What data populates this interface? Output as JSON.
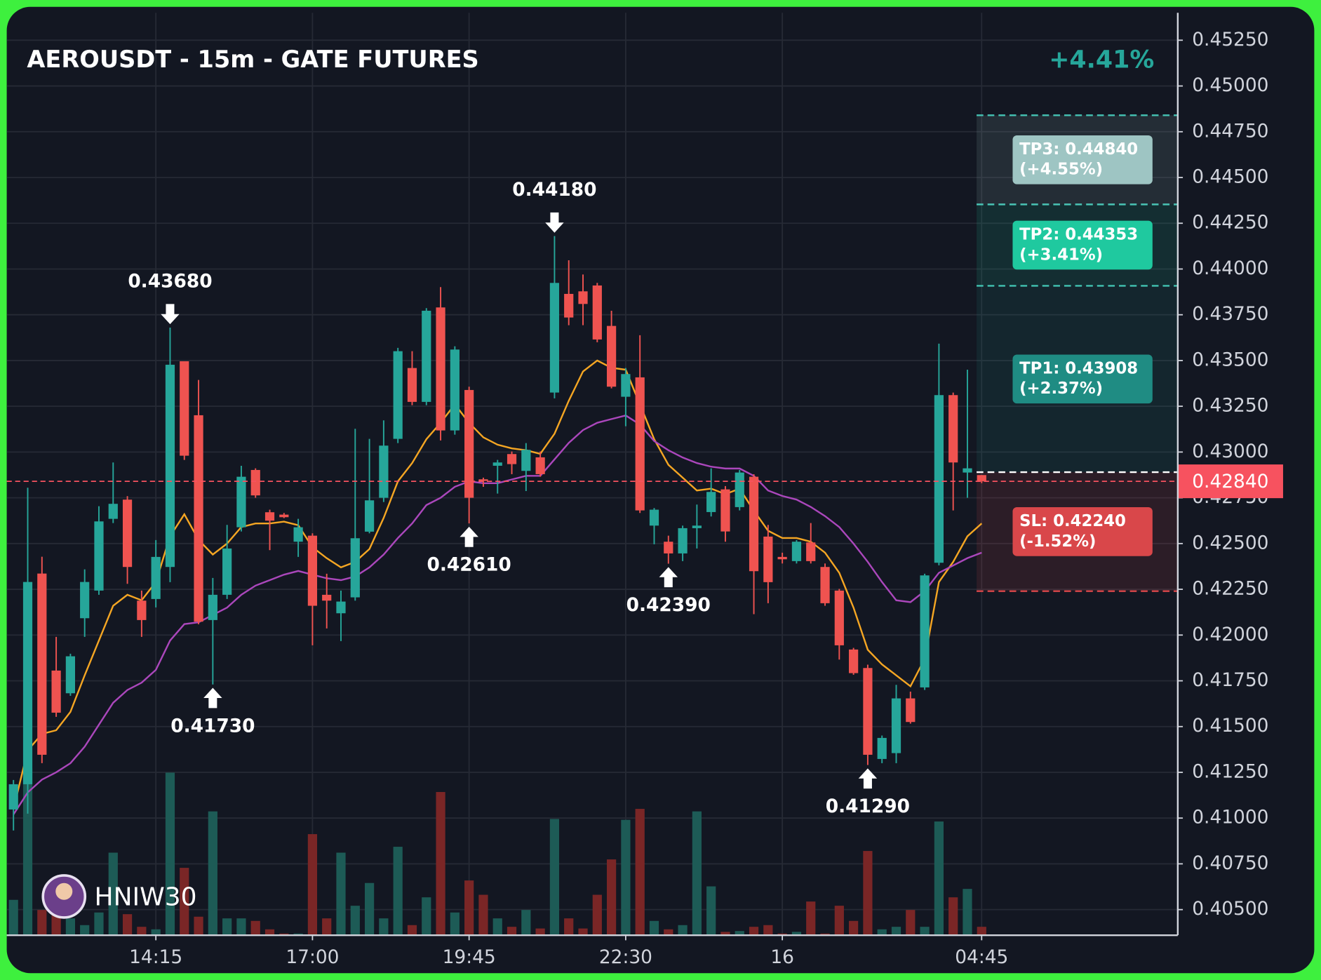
{
  "chart_data": {
    "type": "candlestick",
    "title": "AEROUSDT - 15m - GATE FUTURES",
    "change_label": "+4.41%",
    "watermark": "HNIW30",
    "categories": [
      null,
      null,
      null,
      null,
      null,
      null,
      null,
      null,
      null,
      null,
      "14:15",
      null,
      null,
      null,
      null,
      null,
      null,
      null,
      null,
      null,
      null,
      "17:00",
      null,
      null,
      null,
      null,
      null,
      null,
      null,
      null,
      null,
      null,
      "19:45",
      null,
      null,
      null,
      null,
      null,
      null,
      null,
      null,
      null,
      null,
      "22:30",
      null,
      null,
      null,
      null,
      null,
      null,
      null,
      null,
      null,
      null,
      "16",
      null,
      null,
      null,
      null,
      null,
      null,
      null,
      null,
      null,
      null,
      null,
      null,
      null,
      "04:45"
    ],
    "open": [
      0.41047,
      0.41185,
      0.42336,
      0.41806,
      0.41682,
      0.42092,
      0.42243,
      0.42635,
      0.4274,
      0.42188,
      0.42197,
      0.42372,
      0.43496,
      0.43201,
      0.42082,
      0.4222,
      0.42589,
      0.42902,
      0.42671,
      0.42658,
      0.4251,
      0.42543,
      0.4222,
      0.42119,
      0.42206,
      0.42565,
      0.4275,
      0.43072,
      0.43459,
      0.43274,
      0.4379,
      0.43118,
      0.43339,
      0.42851,
      0.42925,
      0.42989,
      0.42897,
      0.42971,
      0.43325,
      0.43864,
      0.43878,
      0.4391,
      0.43689,
      0.43302,
      0.43408,
      0.42598,
      0.4251,
      0.42446,
      0.42584,
      0.42672,
      0.42796,
      0.42699,
      0.42865,
      0.42538,
      0.42427,
      0.42404,
      0.42506,
      0.42372,
      0.42243,
      0.41921,
      0.4182,
      0.41323,
      0.41355,
      0.41654,
      0.41714,
      0.42395,
      0.43311,
      0.42888,
      0.42874
    ],
    "high": [
      0.41208,
      0.42805,
      0.42428,
      0.4199,
      0.41898,
      0.42359,
      0.42704,
      0.42943,
      0.42759,
      0.42243,
      0.42519,
      0.4368,
      0.43496,
      0.43394,
      0.42312,
      0.42602,
      0.42925,
      0.42911,
      0.42685,
      0.42667,
      0.42635,
      0.42556,
      0.42335,
      0.42243,
      0.43127,
      0.43072,
      0.43173,
      0.43569,
      0.43551,
      0.43786,
      0.43901,
      0.43578,
      0.43357,
      0.4286,
      0.42957,
      0.43003,
      0.43049,
      0.43003,
      0.4418,
      0.44048,
      0.4397,
      0.43924,
      0.43772,
      0.43459,
      0.43638,
      0.42694,
      0.42543,
      0.42598,
      0.42713,
      0.42911,
      0.42814,
      0.42902,
      0.42879,
      0.42602,
      0.4245,
      0.42519,
      0.42612,
      0.42391,
      0.42252,
      0.4193,
      0.41838,
      0.41451,
      0.41728,
      0.41691,
      0.42335,
      0.43592,
      0.43325,
      0.4345,
      0.42874
    ],
    "low": [
      0.40932,
      0.41024,
      0.413,
      0.41553,
      0.41668,
      0.4199,
      0.4222,
      0.42612,
      0.4228,
      0.4199,
      0.42151,
      0.42289,
      0.42957,
      0.42059,
      0.4173,
      0.42197,
      0.42566,
      0.4275,
      0.42464,
      0.42639,
      0.42427,
      0.41944,
      0.42036,
      0.41967,
      0.42188,
      0.42556,
      0.42727,
      0.43049,
      0.43256,
      0.43256,
      0.43063,
      0.43095,
      0.4261,
      0.4281,
      0.42773,
      0.42879,
      0.42787,
      0.42865,
      0.43293,
      0.43693,
      0.43693,
      0.436,
      0.43348,
      0.43141,
      0.42667,
      0.42496,
      0.4239,
      0.42404,
      0.42473,
      0.42648,
      0.4251,
      0.42681,
      0.42114,
      0.42174,
      0.42391,
      0.42391,
      0.42391,
      0.4216,
      0.41866,
      0.41783,
      0.4129,
      0.413,
      0.413,
      0.41516,
      0.417,
      0.42381,
      0.42681,
      0.4275,
      0.4283
    ],
    "close": [
      0.41185,
      0.4229,
      0.41346,
      0.41576,
      0.41884,
      0.4229,
      0.42621,
      0.42717,
      0.42372,
      0.42082,
      0.42427,
      0.43477,
      0.4298,
      0.42073,
      0.4222,
      0.42473,
      0.42865,
      0.42763,
      0.42625,
      0.42644,
      0.42589,
      0.4216,
      0.42188,
      0.42183,
      0.42529,
      0.42736,
      0.43035,
      0.43551,
      0.43274,
      0.43772,
      0.43118,
      0.4356,
      0.4275,
      0.42842,
      0.42943,
      0.42934,
      0.43012,
      0.42879,
      0.43924,
      0.43735,
      0.43809,
      0.43615,
      0.43357,
      0.43426,
      0.42681,
      0.42685,
      0.42446,
      0.42584,
      0.42598,
      0.42782,
      0.42566,
      0.42888,
      0.42349,
      0.42289,
      0.42414,
      0.4251,
      0.42404,
      0.42174,
      0.41944,
      0.41792,
      0.41346,
      0.41438,
      0.41654,
      0.41525,
      0.42326,
      0.43311,
      0.42943,
      0.42911,
      0.4284
    ],
    "volume": [
      42,
      198,
      30,
      35,
      20,
      12,
      27,
      98,
      25,
      10,
      7,
      193,
      80,
      22,
      147,
      20,
      20,
      17,
      7,
      2,
      2,
      120,
      20,
      98,
      35,
      62,
      20,
      105,
      12,
      45,
      170,
      27,
      65,
      48,
      20,
      10,
      30,
      8,
      138,
      20,
      8,
      48,
      90,
      137,
      150,
      17,
      7,
      12,
      147,
      58,
      4,
      5,
      10,
      12,
      2,
      4,
      40,
      2,
      35,
      17,
      100,
      7,
      10,
      30,
      10,
      135,
      45,
      55,
      10
    ],
    "volume_lim": [
      0,
      250
    ],
    "up_color": "#26a69a",
    "down_color": "#ef5350",
    "volume_up_color": "#1d5b56",
    "volume_down_color": "#7a2626",
    "lines": [
      {
        "color": "#f5a623",
        "values": [
          0.4105,
          0.4137,
          0.4146,
          0.4148,
          0.4158,
          0.4178,
          0.4197,
          0.4216,
          0.4222,
          0.4219,
          0.4229,
          0.4254,
          0.4266,
          0.4252,
          0.4244,
          0.425,
          0.4259,
          0.4261,
          0.4261,
          0.4262,
          0.426,
          0.4248,
          0.4242,
          0.4237,
          0.424,
          0.4247,
          0.4264,
          0.4284,
          0.4294,
          0.4307,
          0.4316,
          0.4326,
          0.4316,
          0.4308,
          0.4304,
          0.4302,
          0.4301,
          0.4299,
          0.431,
          0.4328,
          0.4344,
          0.435,
          0.4346,
          0.4345,
          0.4326,
          0.4307,
          0.4293,
          0.4286,
          0.4279,
          0.428,
          0.4277,
          0.428,
          0.4268,
          0.4257,
          0.4253,
          0.4253,
          0.4251,
          0.4245,
          0.4234,
          0.4215,
          0.4192,
          0.4184,
          0.4178,
          0.4172,
          0.4187,
          0.4229,
          0.424,
          0.4254,
          0.4261
        ]
      },
      {
        "color": "#ab47bc",
        "values": [
          0.4102,
          0.4114,
          0.4121,
          0.4125,
          0.413,
          0.4139,
          0.4151,
          0.4163,
          0.417,
          0.4174,
          0.4181,
          0.4197,
          0.4206,
          0.4207,
          0.4211,
          0.4215,
          0.4222,
          0.4227,
          0.423,
          0.4233,
          0.4235,
          0.4233,
          0.4231,
          0.423,
          0.4232,
          0.4237,
          0.4244,
          0.4253,
          0.4261,
          0.4271,
          0.4275,
          0.4281,
          0.4284,
          0.4283,
          0.4283,
          0.4285,
          0.4287,
          0.4287,
          0.4296,
          0.4305,
          0.4312,
          0.4316,
          0.4318,
          0.432,
          0.4315,
          0.4306,
          0.4301,
          0.4297,
          0.4294,
          0.4292,
          0.4291,
          0.4291,
          0.4287,
          0.4279,
          0.4276,
          0.4274,
          0.427,
          0.4265,
          0.4259,
          0.425,
          0.424,
          0.4229,
          0.4219,
          0.4218,
          0.4224,
          0.4234,
          0.4238,
          0.4242,
          0.4245
        ]
      }
    ],
    "annotations": [
      {
        "value": 0.4368,
        "label": "0.43680"
      },
      {
        "value": 0.4173,
        "label": "0.41730"
      },
      {
        "value": 0.4261,
        "label": "0.42610"
      },
      {
        "value": 0.4418,
        "label": "0.44180"
      },
      {
        "value": 0.4239,
        "label": "0.42390"
      },
      {
        "value": 0.4129,
        "label": "0.41290"
      }
    ],
    "entry": 0.4289,
    "level_line_color": "#45c4b4",
    "targets": [
      {
        "value": 0.43908,
        "label": "TP1: 0.43908",
        "change": "(+2.37%)",
        "color": "#1f8c83"
      },
      {
        "value": 0.44353,
        "label": "TP2: 0.44353",
        "change": "(+3.41%)",
        "color": "#1fc99f"
      },
      {
        "value": 0.4484,
        "label": "TP3: 0.44840",
        "change": "(+4.55%)",
        "color": "#9ec5c3"
      }
    ],
    "stop_loss": {
      "value": 0.4224,
      "label": "SL: 0.42240",
      "change": "(-1.52%)",
      "color": "#d9474a"
    },
    "last_price": {
      "value": 0.4284,
      "label": "0.42840",
      "color": "#f7525f"
    },
    "ylim": [
      0.4036,
      0.454
    ],
    "yticks": [
      {
        "value": 0.4525,
        "label": "0.45250"
      },
      {
        "value": 0.45,
        "label": "0.45000"
      },
      {
        "value": 0.4475,
        "label": "0.44750"
      },
      {
        "value": 0.445,
        "label": "0.44500"
      },
      {
        "value": 0.4425,
        "label": "0.44250"
      },
      {
        "value": 0.44,
        "label": "0.44000"
      },
      {
        "value": 0.4375,
        "label": "0.43750"
      },
      {
        "value": 0.435,
        "label": "0.43500"
      },
      {
        "value": 0.4325,
        "label": "0.43250"
      },
      {
        "value": 0.43,
        "label": "0.43000"
      },
      {
        "value": 0.4275,
        "label": "0.42750"
      },
      {
        "value": 0.425,
        "label": "0.42500"
      },
      {
        "value": 0.4225,
        "label": "0.42250"
      },
      {
        "value": 0.42,
        "label": "0.42000"
      },
      {
        "value": 0.4175,
        "label": "0.41750"
      },
      {
        "value": 0.415,
        "label": "0.41500"
      },
      {
        "value": 0.4125,
        "label": "0.41250"
      },
      {
        "value": 0.41,
        "label": "0.41000"
      },
      {
        "value": 0.4075,
        "label": "0.40750"
      },
      {
        "value": 0.405,
        "label": "0.40500"
      }
    ],
    "grid": true
  }
}
